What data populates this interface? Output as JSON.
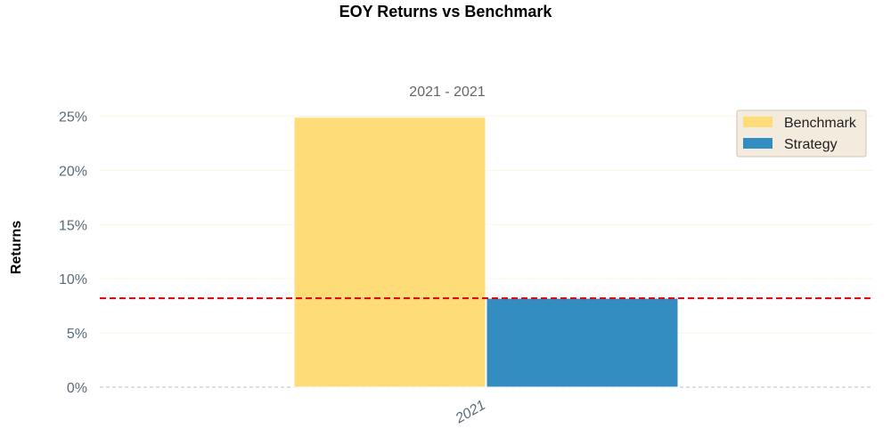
{
  "chart_data": {
    "type": "bar",
    "title": "EOY Returns  vs Benchmark",
    "subtitle": "2021 - 2021",
    "xlabel": "",
    "ylabel": "Returns",
    "categories": [
      "2021"
    ],
    "series": [
      {
        "name": "Benchmark",
        "values": [
          24.9
        ],
        "color": "#fedd78"
      },
      {
        "name": "Strategy",
        "values": [
          8.2
        ],
        "color": "#348dc1"
      }
    ],
    "ylim": [
      0,
      26
    ],
    "yticks": [
      0,
      5,
      10,
      15,
      20,
      25
    ],
    "ytick_labels": [
      "0%",
      "5%",
      "10%",
      "15%",
      "20%",
      "25%"
    ],
    "reference_line": {
      "value": 8.2,
      "style": "dashed",
      "color": "#dd0000"
    },
    "grid": true,
    "legend_position": "top-right"
  }
}
